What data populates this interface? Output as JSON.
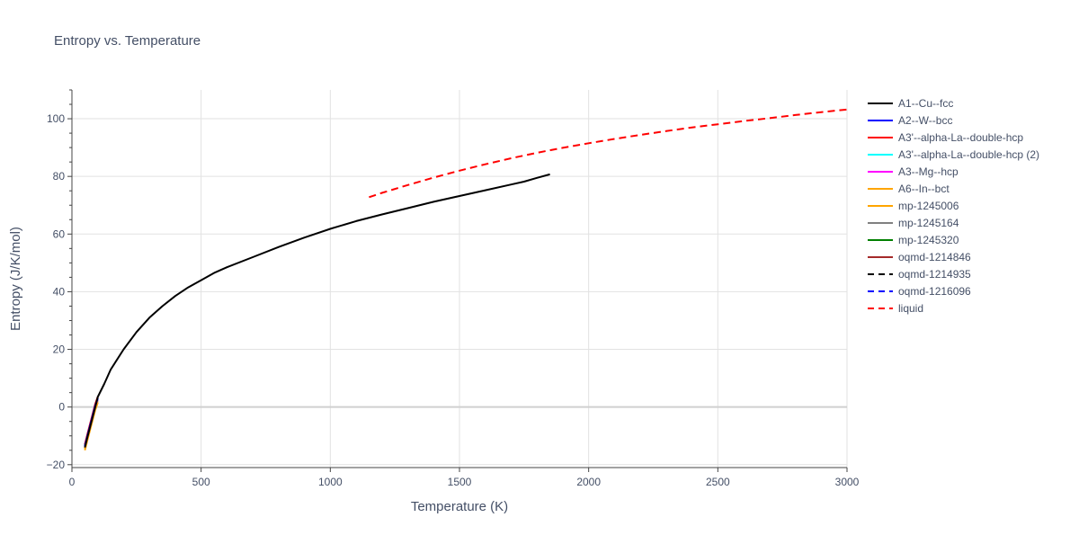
{
  "chart_data": {
    "type": "line",
    "title": "Entropy vs. Temperature",
    "xlabel": "Temperature (K)",
    "ylabel": "Entropy (J/K/mol)",
    "xlim": [
      0,
      3000
    ],
    "ylim": [
      -21,
      110
    ],
    "xticks": [
      0,
      500,
      1000,
      1500,
      2000,
      2500,
      3000
    ],
    "yticks": [
      -20,
      0,
      20,
      40,
      60,
      80,
      100
    ],
    "grid": true,
    "legend_position": "right",
    "series": [
      {
        "name": "A1--Cu--fcc",
        "color": "#000000",
        "dash": "solid",
        "x": [
          50,
          60,
          70,
          80,
          90,
          100,
          125,
          150,
          200,
          250,
          300,
          350,
          400,
          450,
          500,
          550,
          600,
          700,
          800,
          900,
          1000,
          1100,
          1200,
          1300,
          1400,
          1500,
          1600,
          1700,
          1750,
          1800,
          1850
        ],
        "y": [
          -14,
          -10.5,
          -7,
          -3.5,
          0,
          3.5,
          8,
          13,
          20,
          26,
          31,
          35,
          38.5,
          41.5,
          44,
          46.5,
          48.5,
          52,
          55.5,
          58.8,
          61.8,
          64.5,
          66.8,
          69,
          71.2,
          73.2,
          75.2,
          77.2,
          78.2,
          79.5,
          80.7
        ]
      },
      {
        "name": "A2--W--bcc",
        "color": "#0000ff",
        "dash": "solid",
        "x": [
          50,
          60,
          70,
          80,
          90,
          100
        ],
        "y": [
          -13.5,
          -10,
          -6.5,
          -3,
          0.5,
          3
        ]
      },
      {
        "name": "A3'--alpha-La--double-hcp",
        "color": "#ff0000",
        "dash": "solid",
        "x": [
          50,
          60,
          70,
          80,
          90,
          100
        ],
        "y": [
          -13,
          -9.5,
          -6,
          -2.5,
          1,
          3.5
        ]
      },
      {
        "name": "A3'--alpha-La--double-hcp (2)",
        "color": "#00ffff",
        "dash": "solid",
        "x": [
          50,
          60,
          70,
          80,
          90,
          100
        ],
        "y": [
          -13.5,
          -10,
          -6.5,
          -3,
          0.5,
          3
        ]
      },
      {
        "name": "A3--Mg--hcp",
        "color": "#ff00ff",
        "dash": "solid",
        "x": [
          50,
          60,
          70,
          80,
          90,
          100
        ],
        "y": [
          -13.8,
          -10.3,
          -6.8,
          -3.3,
          0.2,
          2.8
        ]
      },
      {
        "name": "A6--In--bct",
        "color": "#ffa500",
        "dash": "solid",
        "x": [
          50,
          60,
          70,
          80,
          90,
          100
        ],
        "y": [
          -14.5,
          -11,
          -7.5,
          -4,
          -0.5,
          2
        ]
      },
      {
        "name": "mp-1245006",
        "color": "#ffa500",
        "dash": "solid",
        "x": [
          50,
          60,
          70,
          80,
          90,
          100
        ],
        "y": [
          -15,
          -11.5,
          -8,
          -4.5,
          -1,
          1.5
        ]
      },
      {
        "name": "mp-1245164",
        "color": "#808080",
        "dash": "solid",
        "x": [
          50,
          60,
          70,
          80,
          90,
          100
        ],
        "y": [
          -14.2,
          -10.7,
          -7.2,
          -3.7,
          -0.2,
          2.5
        ]
      },
      {
        "name": "mp-1245320",
        "color": "#008000",
        "dash": "solid",
        "x": [
          50,
          60,
          70,
          80,
          90,
          100
        ],
        "y": [
          -14,
          -10.5,
          -7,
          -3.5,
          0,
          2.8
        ]
      },
      {
        "name": "oqmd-1214846",
        "color": "#a52a2a",
        "dash": "solid",
        "x": [
          50,
          60,
          70,
          80,
          90,
          100
        ],
        "y": [
          -13.2,
          -9.7,
          -6.2,
          -2.7,
          0.8,
          3.3
        ]
      },
      {
        "name": "oqmd-1214935",
        "color": "#000000",
        "dash": "dash",
        "x": [
          50,
          60,
          70,
          80,
          90,
          100
        ],
        "y": [
          -13.8,
          -10.3,
          -6.8,
          -3.3,
          0.2,
          3
        ]
      },
      {
        "name": "oqmd-1216096",
        "color": "#0000ff",
        "dash": "dash",
        "x": [
          50,
          60,
          70,
          80,
          90,
          100
        ],
        "y": [
          -13.6,
          -10.1,
          -6.6,
          -3.1,
          0.4,
          3
        ]
      },
      {
        "name": "liquid",
        "color": "#ff0000",
        "dash": "dash",
        "x": [
          1150,
          1200,
          1300,
          1400,
          1500,
          1600,
          1700,
          1800,
          1900,
          2000,
          2100,
          2200,
          2300,
          2400,
          2500,
          2600,
          2700,
          2800,
          2900,
          3000
        ],
        "y": [
          72.8,
          74.3,
          77,
          79.6,
          82,
          84.2,
          86.3,
          88.2,
          89.9,
          91.5,
          93,
          94.4,
          95.7,
          97,
          98.1,
          99.2,
          100.2,
          101.3,
          102.3,
          103.2
        ]
      }
    ]
  }
}
